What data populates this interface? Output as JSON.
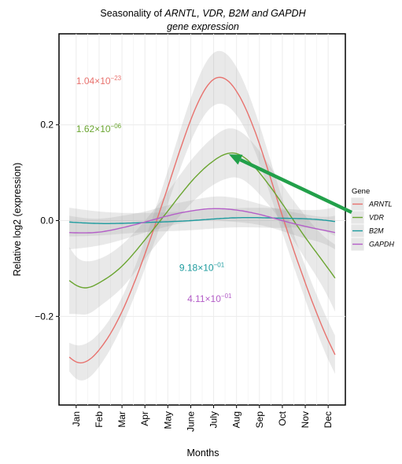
{
  "chart_data": {
    "type": "line",
    "title_line1_prefix": "Seasonality of ",
    "title_line1_genes": "ARNTL, VDR, B2M and GAPDH",
    "title_line2": "gene expression",
    "xlabel": "Months",
    "ylabel": "Relative log2 (expression)",
    "categories": [
      "Jan",
      "Feb",
      "Mar",
      "Apr",
      "May",
      "June",
      "July",
      "Aug",
      "Sep",
      "Oct",
      "Nov",
      "Dec"
    ],
    "xlim": [
      0.25,
      12.75
    ],
    "ylim": [
      -0.385,
      0.39
    ],
    "yticks": [
      -0.2,
      0.0,
      0.2
    ],
    "ytick_labels": [
      "−0.2",
      "0.0",
      "0.2"
    ],
    "grid": true,
    "legend": {
      "title": "Gene",
      "placement": "right"
    },
    "series": [
      {
        "name": "ARNTL",
        "color": "#e8726e",
        "x": [
          0.7,
          1.0,
          2.0,
          3.0,
          4.0,
          5.0,
          6.0,
          7.0,
          8.0,
          9.0,
          10.0,
          11.0,
          12.0,
          12.3
        ],
        "values": [
          -0.285,
          -0.295,
          -0.27,
          -0.19,
          -0.07,
          0.07,
          0.21,
          0.295,
          0.27,
          0.16,
          0.01,
          -0.13,
          -0.25,
          -0.28
        ],
        "band": [
          0.03,
          0.035,
          0.035,
          0.03,
          0.03,
          0.035,
          0.045,
          0.055,
          0.05,
          0.04,
          0.035,
          0.035,
          0.04,
          0.04
        ],
        "annotation": {
          "prefix": "1.04×10",
          "exponent": "−23",
          "x": 1.0,
          "y": 0.285
        }
      },
      {
        "name": "VDR",
        "color": "#6aa530",
        "x": [
          0.7,
          1.0,
          1.5,
          2.0,
          3.0,
          4.0,
          5.0,
          6.0,
          7.0,
          7.6,
          8.0,
          9.0,
          10.0,
          11.0,
          12.0,
          12.3
        ],
        "values": [
          -0.125,
          -0.135,
          -0.14,
          -0.13,
          -0.095,
          -0.04,
          0.02,
          0.08,
          0.125,
          0.14,
          0.14,
          0.1,
          0.035,
          -0.035,
          -0.1,
          -0.12
        ],
        "band": [
          0.07,
          0.06,
          0.055,
          0.05,
          0.045,
          0.04,
          0.04,
          0.045,
          0.05,
          0.052,
          0.05,
          0.045,
          0.04,
          0.045,
          0.06,
          0.07
        ],
        "annotation": {
          "prefix": "1.62×10",
          "exponent": "−06",
          "x": 1.0,
          "y": 0.185
        }
      },
      {
        "name": "B2M",
        "color": "#1c9b9e",
        "x": [
          0.7,
          2.0,
          4.0,
          6.0,
          8.0,
          10.0,
          12.0,
          12.3
        ],
        "values": [
          -0.003,
          -0.006,
          -0.004,
          0.0,
          0.006,
          0.005,
          0.0,
          -0.002
        ],
        "band": [
          0.03,
          0.025,
          0.02,
          0.02,
          0.02,
          0.02,
          0.025,
          0.03
        ],
        "annotation": {
          "prefix": "9.18×10",
          "exponent": "−01",
          "x": 5.5,
          "y": -0.105
        }
      },
      {
        "name": "GAPDH",
        "color": "#b45ec8",
        "x": [
          0.7,
          2.0,
          3.0,
          4.0,
          5.0,
          6.0,
          7.0,
          8.0,
          9.0,
          10.0,
          11.0,
          12.0,
          12.3
        ],
        "values": [
          -0.025,
          -0.024,
          -0.015,
          -0.003,
          0.01,
          0.02,
          0.025,
          0.022,
          0.013,
          0.0,
          -0.012,
          -0.022,
          -0.025
        ],
        "band": [
          0.035,
          0.028,
          0.025,
          0.022,
          0.022,
          0.022,
          0.025,
          0.025,
          0.022,
          0.022,
          0.025,
          0.03,
          0.035
        ],
        "annotation": {
          "prefix": "4.11×10",
          "exponent": "−01",
          "x": 5.85,
          "y": -0.17
        }
      }
    ],
    "arrow": {
      "color": "#22a04a",
      "from_legend_series": "VDR",
      "to": {
        "x": 7.6,
        "y": 0.14
      }
    }
  }
}
